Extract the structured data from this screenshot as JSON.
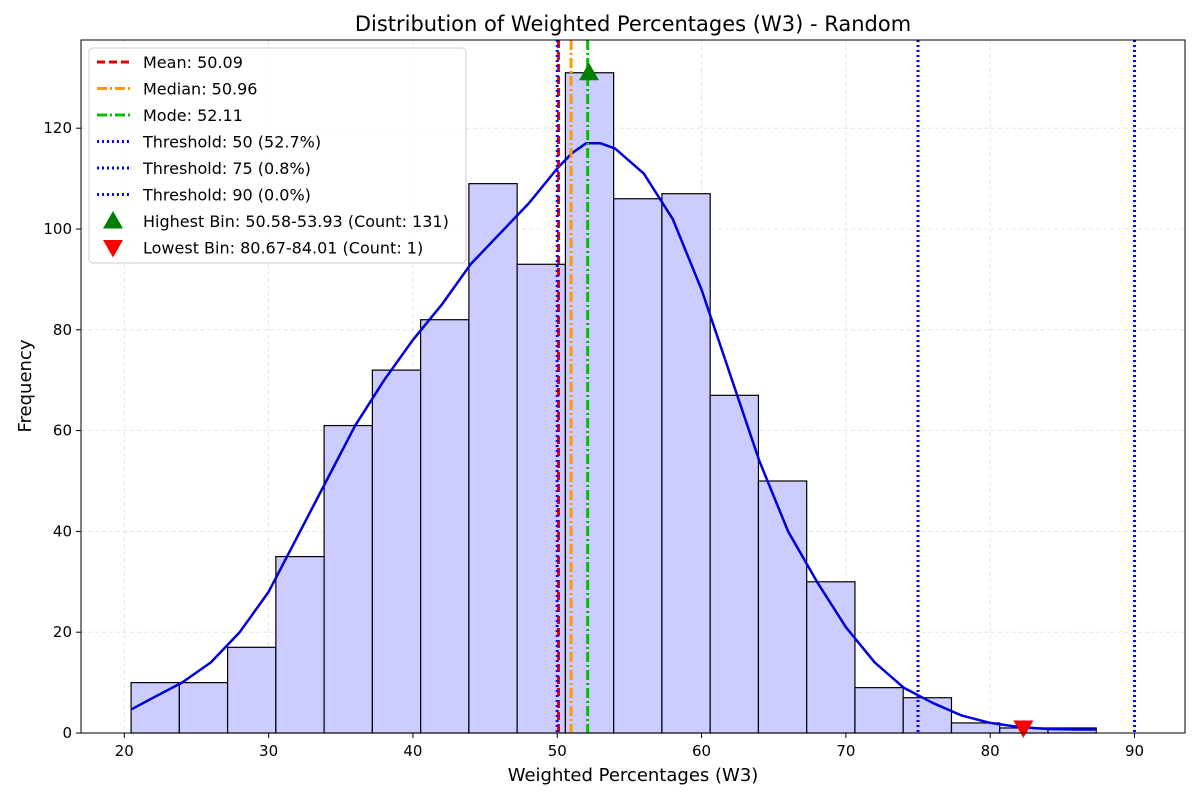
{
  "chart_data": {
    "type": "bar",
    "title": "Distribution of Weighted Percentages (W3) - Random",
    "xlabel": "Weighted Percentages (W3)",
    "ylabel": "Frequency",
    "xlim": [
      17,
      93.5
    ],
    "ylim": [
      0,
      137.5
    ],
    "xticks": [
      20,
      30,
      40,
      50,
      60,
      70,
      80,
      90
    ],
    "yticks": [
      0,
      20,
      40,
      60,
      80,
      100,
      120
    ],
    "grid": true,
    "bins": {
      "start": 20.47,
      "width": 3.344,
      "counts": [
        10,
        10,
        17,
        35,
        61,
        72,
        82,
        109,
        93,
        131,
        106,
        107,
        67,
        50,
        30,
        9,
        7,
        2,
        1,
        1
      ]
    },
    "kde": {
      "x": [
        20.5,
        22,
        24,
        26,
        28,
        30,
        32,
        34,
        36,
        38,
        40,
        42,
        44,
        46,
        48,
        50,
        51,
        52,
        53,
        54,
        56,
        58,
        60,
        62,
        64,
        66,
        68,
        70,
        72,
        74,
        76,
        78,
        80,
        82,
        84,
        86,
        87.3
      ],
      "y": [
        4.7,
        7,
        10,
        14,
        20,
        28,
        39,
        50,
        61,
        70,
        78,
        85,
        93,
        99,
        105,
        112,
        115,
        117,
        117,
        116,
        111,
        102,
        88,
        71,
        54,
        40,
        30,
        21,
        14,
        9,
        6,
        3.5,
        2,
        1.2,
        0.8,
        0.7,
        0.7
      ]
    },
    "vlines": [
      {
        "label": "Mean: 50.09",
        "x": 50.09,
        "color": "#e60000",
        "dash": "8,4"
      },
      {
        "label": "Median: 50.96",
        "x": 50.96,
        "color": "#ff9900",
        "dash": "10,3,2,3"
      },
      {
        "label": "Mode: 52.11",
        "x": 52.11,
        "color": "#00c000",
        "dash": "10,3,2,3"
      },
      {
        "label": "Threshold: 50 (52.7%)",
        "x": 50,
        "color": "#0000ff",
        "dash": "2,3"
      },
      {
        "label": "Threshold: 75 (0.8%)",
        "x": 75,
        "color": "#0000ff",
        "dash": "2,3"
      },
      {
        "label": "Threshold: 90 (0.0%)",
        "x": 90,
        "color": "#0000ff",
        "dash": "2,3"
      }
    ],
    "markers": [
      {
        "label": "Highest Bin: 50.58-53.93 (Count: 131)",
        "x": 52.2,
        "y": 131,
        "shape": "triangle-up",
        "color": "#008000"
      },
      {
        "label": "Lowest Bin: 80.67-84.01 (Count: 1)",
        "x": 82.3,
        "y": 1,
        "shape": "triangle-down",
        "color": "#ff0000"
      }
    ],
    "colors": {
      "bar_fill": "#ccccff",
      "bar_edge": "#000000",
      "kde": "#0000dd",
      "grid": "#dddddd"
    },
    "legend_position": "top-left"
  }
}
